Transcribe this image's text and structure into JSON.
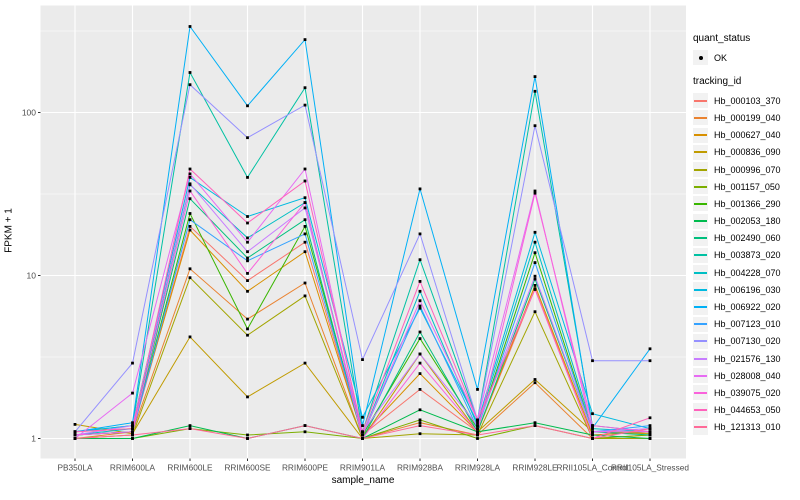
{
  "figure": {
    "panel_bg": "#EBEBEB",
    "grid_color": "#FFFFFF",
    "point_color": "#000000",
    "tick_label_color": "#4D4D4D",
    "axis_title_color": "#000000"
  },
  "legend": {
    "quant_status_title": "quant_status",
    "quant_status_items": [
      "OK"
    ],
    "tracking_title": "tracking_id"
  },
  "chart_data": {
    "type": "line",
    "title": "",
    "xlabel": "sample_name",
    "ylabel": "FPKM + 1",
    "y_scale": "log10",
    "ylim": [
      0.75,
      450
    ],
    "y_ticks": [
      1,
      10,
      100
    ],
    "y_minor_ticks": [
      3.162,
      31.62,
      316.2
    ],
    "grid": true,
    "legend_position": "right",
    "point_shape": "small black square (quant_status OK)",
    "categories": [
      "PB350LA",
      "RRIM600LA",
      "RRIM600LE",
      "RRIM600SE",
      "RRIM600PE",
      "RRIM901LA",
      "RRIM928BA",
      "RRIM928LA",
      "RRIM928LE",
      "RRII105LA_Control",
      "RRII105LA_Stressed"
    ],
    "series": [
      {
        "name": "Hb_000103_370",
        "color": "#F8766D",
        "values": [
          1.05,
          1.1,
          20,
          9.3,
          16,
          1.05,
          2.0,
          1.1,
          8.3,
          1.05,
          1.1
        ]
      },
      {
        "name": "Hb_000199_040",
        "color": "#EA8331",
        "values": [
          1.0,
          1.1,
          11,
          5.4,
          9.0,
          1.0,
          1.25,
          1.05,
          2.2,
          1.0,
          1.05
        ]
      },
      {
        "name": "Hb_000627_040",
        "color": "#D89000",
        "values": [
          1.1,
          1.15,
          19,
          8.0,
          14,
          1.05,
          2.5,
          1.1,
          8.7,
          1.05,
          1.1
        ]
      },
      {
        "name": "Hb_000836_090",
        "color": "#C09B00",
        "values": [
          1.22,
          1.07,
          4.2,
          1.8,
          2.9,
          1.0,
          3.3,
          1.1,
          2.3,
          1.1,
          1.07
        ]
      },
      {
        "name": "Hb_000996_070",
        "color": "#A3A500",
        "values": [
          1.0,
          1.05,
          9.7,
          4.3,
          7.5,
          1.0,
          1.07,
          1.05,
          6.0,
          1.0,
          1.0
        ]
      },
      {
        "name": "Hb_001157_050",
        "color": "#7CAE00",
        "values": [
          1.0,
          1.0,
          1.15,
          1.05,
          1.1,
          1.0,
          1.3,
          1.0,
          1.2,
          1.0,
          1.05
        ]
      },
      {
        "name": "Hb_001366_290",
        "color": "#39B600",
        "values": [
          1.05,
          1.1,
          24,
          4.7,
          20,
          1.05,
          4.1,
          1.15,
          13.8,
          1.1,
          1.1
        ]
      },
      {
        "name": "Hb_002053_180",
        "color": "#00BB4E",
        "values": [
          1.0,
          1.0,
          1.2,
          1.0,
          1.2,
          1.0,
          1.5,
          1.1,
          1.25,
          1.05,
          1.0
        ]
      },
      {
        "name": "Hb_002490_060",
        "color": "#00BF7D",
        "values": [
          1.05,
          1.1,
          29.6,
          12.8,
          22,
          1.0,
          4.5,
          1.1,
          9.5,
          1.1,
          1.05
        ]
      },
      {
        "name": "Hb_003873_020",
        "color": "#00C1A3",
        "values": [
          1.1,
          1.2,
          176,
          40,
          142,
          1.1,
          12.5,
          1.3,
          135,
          1.2,
          1.1
        ]
      },
      {
        "name": "Hb_004228_070",
        "color": "#00BFC4",
        "values": [
          1.05,
          1.15,
          36,
          17,
          28,
          1.05,
          8.0,
          1.2,
          16,
          1.15,
          1.1
        ]
      },
      {
        "name": "Hb_006196_030",
        "color": "#00BAE0",
        "values": [
          1.1,
          1.2,
          40,
          23,
          30,
          1.35,
          6.3,
          1.25,
          18.4,
          1.42,
          1.15
        ]
      },
      {
        "name": "Hb_006922_020",
        "color": "#00B0F6",
        "values": [
          1.1,
          1.25,
          337,
          110,
          280,
          1.2,
          34,
          2.0,
          166,
          1.16,
          3.55
        ]
      },
      {
        "name": "Hb_007123_010",
        "color": "#35A2FF",
        "values": [
          1.05,
          1.1,
          22,
          12.3,
          18,
          1.05,
          6.5,
          1.15,
          12,
          1.1,
          1.2
        ]
      },
      {
        "name": "Hb_007130_020",
        "color": "#9590FF",
        "values": [
          1.1,
          2.9,
          148,
          70,
          111,
          3.05,
          18,
          1.3,
          83,
          3.0,
          3.0
        ]
      },
      {
        "name": "Hb_021576_130",
        "color": "#C77CFF",
        "values": [
          1.05,
          1.2,
          36.5,
          14,
          26,
          1.1,
          3.3,
          1.2,
          9.9,
          1.1,
          1.15
        ]
      },
      {
        "name": "Hb_028008_040",
        "color": "#E76BF3",
        "values": [
          1.0,
          1.9,
          42,
          16,
          45,
          1.05,
          7.0,
          1.3,
          33,
          1.1,
          1.1
        ]
      },
      {
        "name": "Hb_039075_020",
        "color": "#FA62DB",
        "values": [
          1.05,
          1.1,
          33,
          10.3,
          28,
          1.0,
          2.9,
          1.1,
          32,
          1.2,
          1.1
        ]
      },
      {
        "name": "Hb_044653_050",
        "color": "#FF62BC",
        "values": [
          1.1,
          1.15,
          45,
          21,
          38,
          1.1,
          9.2,
          1.3,
          8.2,
          1.0,
          1.34
        ]
      },
      {
        "name": "Hb_121313_010",
        "color": "#FF6A98",
        "values": [
          1.0,
          1.05,
          1.15,
          1.0,
          1.2,
          1.0,
          1.2,
          1.05,
          1.2,
          1.0,
          1.15
        ]
      }
    ]
  }
}
